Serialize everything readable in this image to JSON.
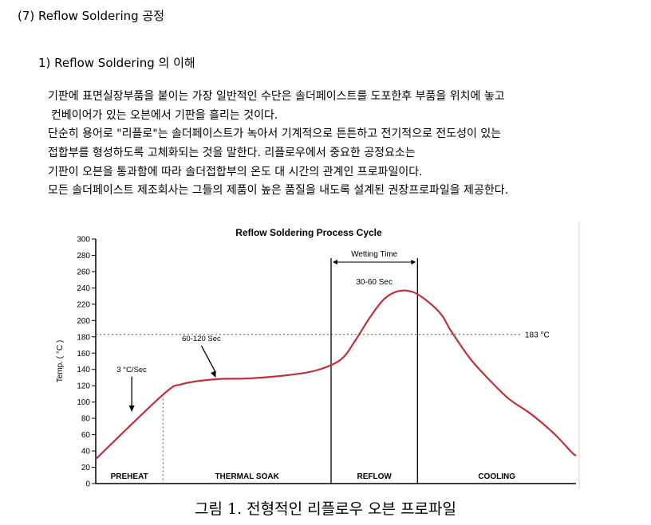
{
  "section_title": "(7) Reflow Soldering 공정",
  "subsection_title": "1) Reflow Soldering 의 이해",
  "paragraph_lines": [
    "기판에 표면실장부품을 붙이는 가장 일반적인 수단은 솔더페이스트를 도포한후 부품을 위치에 놓고",
    "컨베이어가 있는 오븐에서 기판을 흘리는 것이다.",
    "단순히 용어로 \"리플로\"는 솔더페이스트가 녹아서 기계적으로 튼튼하고 전기적으로 전도성이 있는",
    "접합부를 형성하도록 고체화되는 것을 말한다. 리플로우에서 중요한 공정요소는",
    "기판이 오븐을 통과함에 따라 솔더접합부의 온도 대 시간의 관계인 프로파일이다.",
    "모든 솔더페이스트 제조회사는 그들의 제품이 높은 품질을 내도록 설계된 권장프로파일을 제공한다."
  ],
  "chart_data": {
    "type": "line",
    "title": "Reflow Soldering Process Cycle",
    "ylabel": "Temp. ( °C )",
    "xlabel": "",
    "ylim": [
      0,
      300
    ],
    "y_ticks": [
      "300",
      "280",
      "260",
      "240",
      "220",
      "200",
      "180",
      "160",
      "140",
      "120",
      "100",
      "80",
      "60",
      "40",
      "20",
      "0"
    ],
    "grid": false,
    "x_units_note": "",
    "xlim": [
      0,
      100
    ],
    "series": [
      {
        "name": "",
        "color": "#c0303c",
        "points": [
          [
            0,
            30
          ],
          [
            14,
            109
          ],
          [
            18,
            122
          ],
          [
            25,
            128
          ],
          [
            32,
            129
          ],
          [
            40,
            133
          ],
          [
            46,
            139
          ],
          [
            51,
            152
          ],
          [
            54,
            175
          ],
          [
            57,
            203
          ],
          [
            60,
            226
          ],
          [
            63,
            236
          ],
          [
            66,
            235
          ],
          [
            69,
            224
          ],
          [
            72,
            207
          ],
          [
            74,
            187
          ],
          [
            78,
            153
          ],
          [
            82,
            127
          ],
          [
            86,
            104
          ],
          [
            90,
            88
          ],
          [
            93,
            74
          ],
          [
            96,
            58
          ],
          [
            99,
            39
          ],
          [
            100,
            34
          ]
        ]
      }
    ],
    "reference_line": {
      "label": "183 °C",
      "y": 183,
      "style": "dotted"
    },
    "zones": [
      {
        "label": "PREHEAT",
        "x_start": 0,
        "x_end": 14
      },
      {
        "label": "THERMAL SOAK",
        "x_start": 14,
        "x_end": 49
      },
      {
        "label": "REFLOW",
        "x_start": 49,
        "x_end": 67
      },
      {
        "label": "COOLING",
        "x_start": 67,
        "x_end": 100
      }
    ],
    "wetting_window": {
      "x_start": 49,
      "x_end": 67,
      "label": "Wetting Time",
      "duration_label": "30-60 Sec"
    },
    "annotations": [
      {
        "text": "3 °C/Sec",
        "x": 7.5,
        "y": 137,
        "arrow_to": [
          7.5,
          88
        ]
      },
      {
        "text": "60-120 Sec",
        "x": 22,
        "y": 175,
        "arrow_to": [
          25,
          130
        ]
      }
    ]
  },
  "caption": "그림 1. 전형적인 리플로우 오븐 프로파일"
}
